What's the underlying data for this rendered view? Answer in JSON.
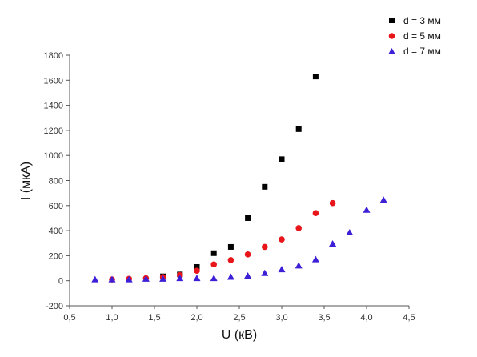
{
  "chart_data": {
    "type": "scatter",
    "title": "",
    "xlabel": "U (кВ)",
    "ylabel": "I (мкА)",
    "xlim": [
      0.5,
      4.5
    ],
    "ylim": [
      -200,
      1800
    ],
    "x_ticks": [
      0.5,
      1.0,
      1.5,
      2.0,
      2.5,
      3.0,
      3.5,
      4.0,
      4.5
    ],
    "x_tick_labels": [
      "0,5",
      "1,0",
      "1,5",
      "2,0",
      "2,5",
      "3,0",
      "3,5",
      "4,0",
      "4,5"
    ],
    "y_ticks": [
      -200,
      0,
      200,
      400,
      600,
      800,
      1000,
      1200,
      1400,
      1600,
      1800
    ],
    "y_tick_labels": [
      "-200",
      "0",
      "200",
      "400",
      "600",
      "800",
      "1000",
      "1200",
      "1400",
      "1600",
      "1800"
    ],
    "grid": false,
    "legend_position": "top-right",
    "series": [
      {
        "name": "d = 3 мм",
        "marker": "square",
        "color": "#000000",
        "points": [
          {
            "x": 1.6,
            "y": 35
          },
          {
            "x": 1.8,
            "y": 50
          },
          {
            "x": 2.0,
            "y": 110
          },
          {
            "x": 2.2,
            "y": 220
          },
          {
            "x": 2.4,
            "y": 270
          },
          {
            "x": 2.6,
            "y": 500
          },
          {
            "x": 2.8,
            "y": 750
          },
          {
            "x": 3.0,
            "y": 970
          },
          {
            "x": 3.2,
            "y": 1210
          },
          {
            "x": 3.4,
            "y": 1630
          }
        ]
      },
      {
        "name": "d = 5 мм",
        "marker": "circle",
        "color": "#e8151b",
        "points": [
          {
            "x": 1.0,
            "y": 10
          },
          {
            "x": 1.2,
            "y": 15
          },
          {
            "x": 1.4,
            "y": 20
          },
          {
            "x": 1.6,
            "y": 30
          },
          {
            "x": 1.8,
            "y": 45
          },
          {
            "x": 2.0,
            "y": 80
          },
          {
            "x": 2.2,
            "y": 130
          },
          {
            "x": 2.4,
            "y": 165
          },
          {
            "x": 2.6,
            "y": 210
          },
          {
            "x": 2.8,
            "y": 270
          },
          {
            "x": 3.0,
            "y": 330
          },
          {
            "x": 3.2,
            "y": 420
          },
          {
            "x": 3.4,
            "y": 540
          },
          {
            "x": 3.6,
            "y": 620
          }
        ]
      },
      {
        "name": "d = 7 мм",
        "marker": "triangle",
        "color": "#3c1fd6",
        "points": [
          {
            "x": 0.8,
            "y": 10
          },
          {
            "x": 1.0,
            "y": 10
          },
          {
            "x": 1.2,
            "y": 10
          },
          {
            "x": 1.4,
            "y": 15
          },
          {
            "x": 1.6,
            "y": 15
          },
          {
            "x": 1.8,
            "y": 20
          },
          {
            "x": 2.0,
            "y": 20
          },
          {
            "x": 2.2,
            "y": 20
          },
          {
            "x": 2.4,
            "y": 30
          },
          {
            "x": 2.6,
            "y": 40
          },
          {
            "x": 2.8,
            "y": 60
          },
          {
            "x": 3.0,
            "y": 90
          },
          {
            "x": 3.2,
            "y": 120
          },
          {
            "x": 3.4,
            "y": 170
          },
          {
            "x": 3.6,
            "y": 295
          },
          {
            "x": 3.8,
            "y": 385
          },
          {
            "x": 4.0,
            "y": 565
          },
          {
            "x": 4.2,
            "y": 645
          }
        ]
      }
    ]
  }
}
